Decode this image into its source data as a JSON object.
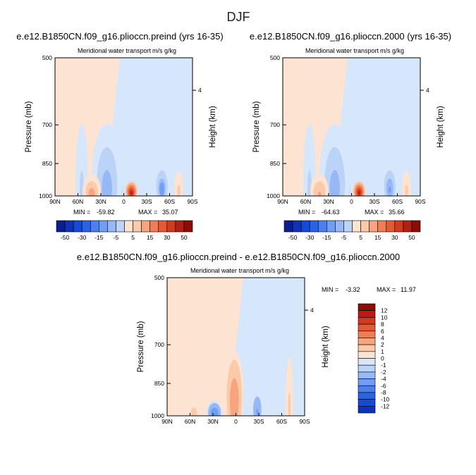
{
  "figure": {
    "title": "DJF",
    "colors": {
      "neg": [
        "#0a1f8f",
        "#0d33b8",
        "#1549d8",
        "#2a62e8",
        "#4a7ff0",
        "#6f9ef3",
        "#97b8f6",
        "#bcd3f8",
        "#d6e6fb"
      ],
      "pos": [
        "#fde3d1",
        "#fbcaa9",
        "#f6a57e",
        "#ef7e55",
        "#e45a35",
        "#d13a1e",
        "#b31f10",
        "#8b0d06"
      ],
      "background_neg": "#d6e6fb",
      "background_pos": "#fde3d1"
    }
  },
  "chart_data": [
    {
      "type": "heatmap",
      "case": "e.e12.B1850CN.f09_g16.plioccn.preind (yrs 16-35)",
      "title": "Meridional water transport",
      "units": "m/s g/kg",
      "ylabel": "Pressure (mb)",
      "y2label": "Height (km)",
      "x_ticks": [
        "90N",
        "60N",
        "30N",
        "0",
        "30S",
        "60S",
        "90S"
      ],
      "y_ticks": [
        500,
        700,
        850,
        1000
      ],
      "y2_ticks": [
        "4"
      ],
      "xlim": [
        90,
        -90
      ],
      "ylim": [
        1000,
        500
      ],
      "stats": {
        "min_label": "MIN =",
        "min": "-59.82",
        "max_label": "MAX =",
        "max": "35.07"
      },
      "colorbar": {
        "levels": [
          -50,
          -40,
          -30,
          -25,
          -20,
          -15,
          -10,
          -5,
          0,
          5,
          10,
          15,
          20,
          25,
          30,
          40,
          50
        ],
        "labels": [
          "-50",
          "-30",
          "-15",
          "-5",
          "5",
          "15",
          "30",
          "50"
        ]
      },
      "features": [
        {
          "lat": 15,
          "p": 960,
          "w": 13,
          "h": 85,
          "v": -59.82
        },
        {
          "lat": 22,
          "p": 920,
          "w": 20,
          "h": 200,
          "v": -12
        },
        {
          "lat": 55,
          "p": 920,
          "w": 8,
          "h": 200,
          "v": -7
        },
        {
          "lat": 42,
          "p": 975,
          "w": 12,
          "h": 60,
          "v": 12
        },
        {
          "lat": -10,
          "p": 975,
          "w": 8,
          "h": 35,
          "v": 35.07
        },
        {
          "lat": -50,
          "p": 950,
          "w": 9,
          "h": 70,
          "v": -18
        },
        {
          "lat": -72,
          "p": 960,
          "w": 6,
          "h": 60,
          "v": 6
        }
      ]
    },
    {
      "type": "heatmap",
      "case": "e.e12.B1850CN.f09_g16.plioccn.2000 (yrs 16-35)",
      "title": "Meridional water transport",
      "units": "m/s g/kg",
      "ylabel": "Pressure (mb)",
      "y2label": "Height (km)",
      "x_ticks": [
        "90N",
        "60N",
        "30N",
        "0",
        "30S",
        "60S",
        "90S"
      ],
      "y_ticks": [
        500,
        700,
        850,
        1000
      ],
      "y2_ticks": [
        "4"
      ],
      "xlim": [
        90,
        -90
      ],
      "ylim": [
        1000,
        500
      ],
      "stats": {
        "min_label": "MIN =",
        "min": "-64.63",
        "max_label": "MAX =",
        "max": "35.66"
      },
      "colorbar": {
        "levels": [
          -50,
          -40,
          -30,
          -25,
          -20,
          -15,
          -10,
          -5,
          0,
          5,
          10,
          15,
          20,
          25,
          30,
          40,
          50
        ],
        "labels": [
          "-50",
          "-30",
          "-15",
          "-5",
          "5",
          "15",
          "30",
          "50"
        ]
      },
      "features": [
        {
          "lat": 15,
          "p": 960,
          "w": 13,
          "h": 85,
          "v": -64.63
        },
        {
          "lat": 22,
          "p": 920,
          "w": 20,
          "h": 200,
          "v": -13
        },
        {
          "lat": 55,
          "p": 920,
          "w": 8,
          "h": 200,
          "v": -7
        },
        {
          "lat": 42,
          "p": 975,
          "w": 12,
          "h": 60,
          "v": 11
        },
        {
          "lat": -10,
          "p": 975,
          "w": 8,
          "h": 35,
          "v": 35.66
        },
        {
          "lat": -50,
          "p": 950,
          "w": 9,
          "h": 70,
          "v": -17
        },
        {
          "lat": -72,
          "p": 960,
          "w": 6,
          "h": 60,
          "v": 6
        }
      ]
    },
    {
      "type": "heatmap",
      "case": "e.e12.B1850CN.f09_g16.plioccn.preind - e.e12.B1850CN.f09_g16.plioccn.2000",
      "title": "Meridional water transport",
      "units": "m/s g/kg",
      "ylabel": "Pressure (mb)",
      "y2label": "Height (km)",
      "x_ticks": [
        "90N",
        "60N",
        "30N",
        "0",
        "30S",
        "60S",
        "90S"
      ],
      "y_ticks": [
        500,
        700,
        850,
        1000
      ],
      "y2_ticks": [
        "4"
      ],
      "xlim": [
        90,
        -90
      ],
      "ylim": [
        1000,
        500
      ],
      "stats": {
        "min_label": "MIN =",
        "min": "-3.32",
        "max_label": "MAX =",
        "max": "11.97"
      },
      "colorbar": {
        "levels": [
          -12,
          -10,
          -8,
          -6,
          -4,
          -2,
          -1,
          0,
          1,
          2,
          4,
          6,
          8,
          10,
          12
        ],
        "labels": [
          "12",
          "10",
          "8",
          "6",
          "4",
          "2",
          "1",
          "0",
          "-1",
          "-2",
          "-4",
          "-6",
          "-8",
          "-10",
          "-12"
        ]
      },
      "features": [
        {
          "lat": 0,
          "p": 960,
          "w": 6,
          "h": 70,
          "v": 11.97
        },
        {
          "lat": 2,
          "p": 900,
          "w": 12,
          "h": 160,
          "v": 3
        },
        {
          "lat": 28,
          "p": 980,
          "w": 10,
          "h": 40,
          "v": -3.32
        },
        {
          "lat": -28,
          "p": 960,
          "w": 8,
          "h": 70,
          "v": -2
        },
        {
          "lat": 55,
          "p": 980,
          "w": 8,
          "h": 40,
          "v": 1.5
        },
        {
          "lat": -70,
          "p": 920,
          "w": 5,
          "h": 150,
          "v": 1.2
        }
      ]
    }
  ]
}
